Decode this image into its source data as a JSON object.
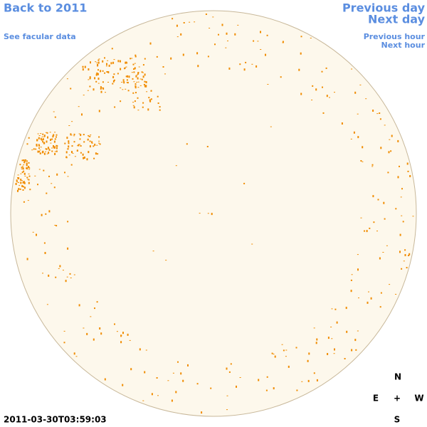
{
  "links": {
    "back": "Back to 2011",
    "facular": "See facular data",
    "prev_day": "Previous day",
    "next_day": "Next day",
    "prev_hour": "Previous hour",
    "next_hour": "Next hour"
  },
  "compass": {
    "north": "N",
    "east": "E",
    "center": "+",
    "west": "W",
    "south": "S"
  },
  "timestamp": "2011-03-30T03:59:03"
}
